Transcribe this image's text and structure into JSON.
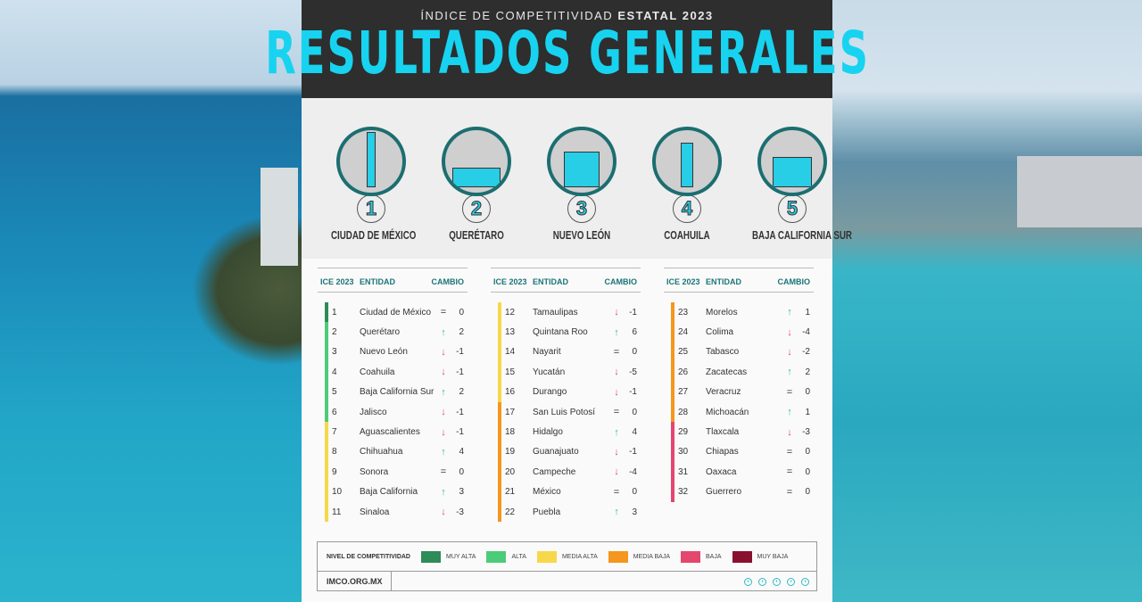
{
  "header": {
    "subtitle_light": "ÍNDICE DE COMPETITIVIDAD",
    "subtitle_bold": "ESTATAL 2023",
    "title": "RESULTADOS GENERALES"
  },
  "top5": [
    {
      "rank": "1",
      "name": "CIUDAD DE MÉXICO"
    },
    {
      "rank": "2",
      "name": "QUERÉTARO"
    },
    {
      "rank": "3",
      "name": "NUEVO LEÓN"
    },
    {
      "rank": "4",
      "name": "COAHUILA"
    },
    {
      "rank": "5",
      "name": "BAJA CALIFORNIA SUR"
    }
  ],
  "table_headers": {
    "rank": "ICE 2023",
    "entity": "ENTIDAD",
    "change": "CAMBIO"
  },
  "colors": {
    "muy_alta": "#2e8b5a",
    "alta": "#4ccc78",
    "media_alta": "#f6d84a",
    "media_baja": "#f5961e",
    "baja": "#e4466e",
    "muy_baja": "#8a1030",
    "up": "#2ec27e",
    "down": "#e24a5a",
    "accent": "#17d3ef"
  },
  "rows": [
    {
      "rank": "1",
      "entity": "Ciudad de México",
      "change": "0",
      "dir": "eq",
      "level": "muy_alta"
    },
    {
      "rank": "2",
      "entity": "Querétaro",
      "change": "2",
      "dir": "up",
      "level": "alta"
    },
    {
      "rank": "3",
      "entity": "Nuevo León",
      "change": "-1",
      "dir": "down",
      "level": "alta"
    },
    {
      "rank": "4",
      "entity": "Coahuila",
      "change": "-1",
      "dir": "down",
      "level": "alta"
    },
    {
      "rank": "5",
      "entity": "Baja California Sur",
      "change": "2",
      "dir": "up",
      "level": "alta"
    },
    {
      "rank": "6",
      "entity": "Jalisco",
      "change": "-1",
      "dir": "down",
      "level": "alta"
    },
    {
      "rank": "7",
      "entity": "Aguascalientes",
      "change": "-1",
      "dir": "down",
      "level": "media_alta"
    },
    {
      "rank": "8",
      "entity": "Chihuahua",
      "change": "4",
      "dir": "up",
      "level": "media_alta"
    },
    {
      "rank": "9",
      "entity": "Sonora",
      "change": "0",
      "dir": "eq",
      "level": "media_alta"
    },
    {
      "rank": "10",
      "entity": "Baja California",
      "change": "3",
      "dir": "up",
      "level": "media_alta"
    },
    {
      "rank": "11",
      "entity": "Sinaloa",
      "change": "-3",
      "dir": "down",
      "level": "media_alta"
    },
    {
      "rank": "12",
      "entity": "Tamaulipas",
      "change": "-1",
      "dir": "down",
      "level": "media_alta"
    },
    {
      "rank": "13",
      "entity": "Quintana Roo",
      "change": "6",
      "dir": "up",
      "level": "media_alta"
    },
    {
      "rank": "14",
      "entity": "Nayarit",
      "change": "0",
      "dir": "eq",
      "level": "media_alta"
    },
    {
      "rank": "15",
      "entity": "Yucatán",
      "change": "-5",
      "dir": "down",
      "level": "media_alta"
    },
    {
      "rank": "16",
      "entity": "Durango",
      "change": "-1",
      "dir": "down",
      "level": "media_alta"
    },
    {
      "rank": "17",
      "entity": "San Luis Potosí",
      "change": "0",
      "dir": "eq",
      "level": "media_baja"
    },
    {
      "rank": "18",
      "entity": "Hidalgo",
      "change": "4",
      "dir": "up",
      "level": "media_baja"
    },
    {
      "rank": "19",
      "entity": "Guanajuato",
      "change": "-1",
      "dir": "down",
      "level": "media_baja"
    },
    {
      "rank": "20",
      "entity": "Campeche",
      "change": "-4",
      "dir": "down",
      "level": "media_baja"
    },
    {
      "rank": "21",
      "entity": "México",
      "change": "0",
      "dir": "eq",
      "level": "media_baja"
    },
    {
      "rank": "22",
      "entity": "Puebla",
      "change": "3",
      "dir": "up",
      "level": "media_baja"
    },
    {
      "rank": "23",
      "entity": "Morelos",
      "change": "1",
      "dir": "up",
      "level": "media_baja"
    },
    {
      "rank": "24",
      "entity": "Colima",
      "change": "-4",
      "dir": "down",
      "level": "media_baja"
    },
    {
      "rank": "25",
      "entity": "Tabasco",
      "change": "-2",
      "dir": "down",
      "level": "media_baja"
    },
    {
      "rank": "26",
      "entity": "Zacatecas",
      "change": "2",
      "dir": "up",
      "level": "media_baja"
    },
    {
      "rank": "27",
      "entity": "Veracruz",
      "change": "0",
      "dir": "eq",
      "level": "media_baja"
    },
    {
      "rank": "28",
      "entity": "Michoacán",
      "change": "1",
      "dir": "up",
      "level": "media_baja"
    },
    {
      "rank": "29",
      "entity": "Tlaxcala",
      "change": "-3",
      "dir": "down",
      "level": "baja"
    },
    {
      "rank": "30",
      "entity": "Chiapas",
      "change": "0",
      "dir": "eq",
      "level": "baja"
    },
    {
      "rank": "31",
      "entity": "Oaxaca",
      "change": "0",
      "dir": "eq",
      "level": "baja"
    },
    {
      "rank": "32",
      "entity": "Guerrero",
      "change": "0",
      "dir": "eq",
      "level": "baja"
    }
  ],
  "legend": {
    "title": "NIVEL DE COMPETITIVIDAD",
    "items": [
      {
        "key": "muy_alta",
        "label": "MUY ALTA"
      },
      {
        "key": "alta",
        "label": "ALTA"
      },
      {
        "key": "media_alta",
        "label": "MEDIA ALTA"
      },
      {
        "key": "media_baja",
        "label": "MEDIA BAJA"
      },
      {
        "key": "baja",
        "label": "BAJA"
      },
      {
        "key": "muy_baja",
        "label": "MUY BAJA"
      }
    ]
  },
  "footer": {
    "site": "IMCO.ORG.MX",
    "social_icons": [
      "twitter-icon",
      "facebook-icon",
      "instagram-icon",
      "youtube-icon",
      "linkedin-icon"
    ]
  }
}
